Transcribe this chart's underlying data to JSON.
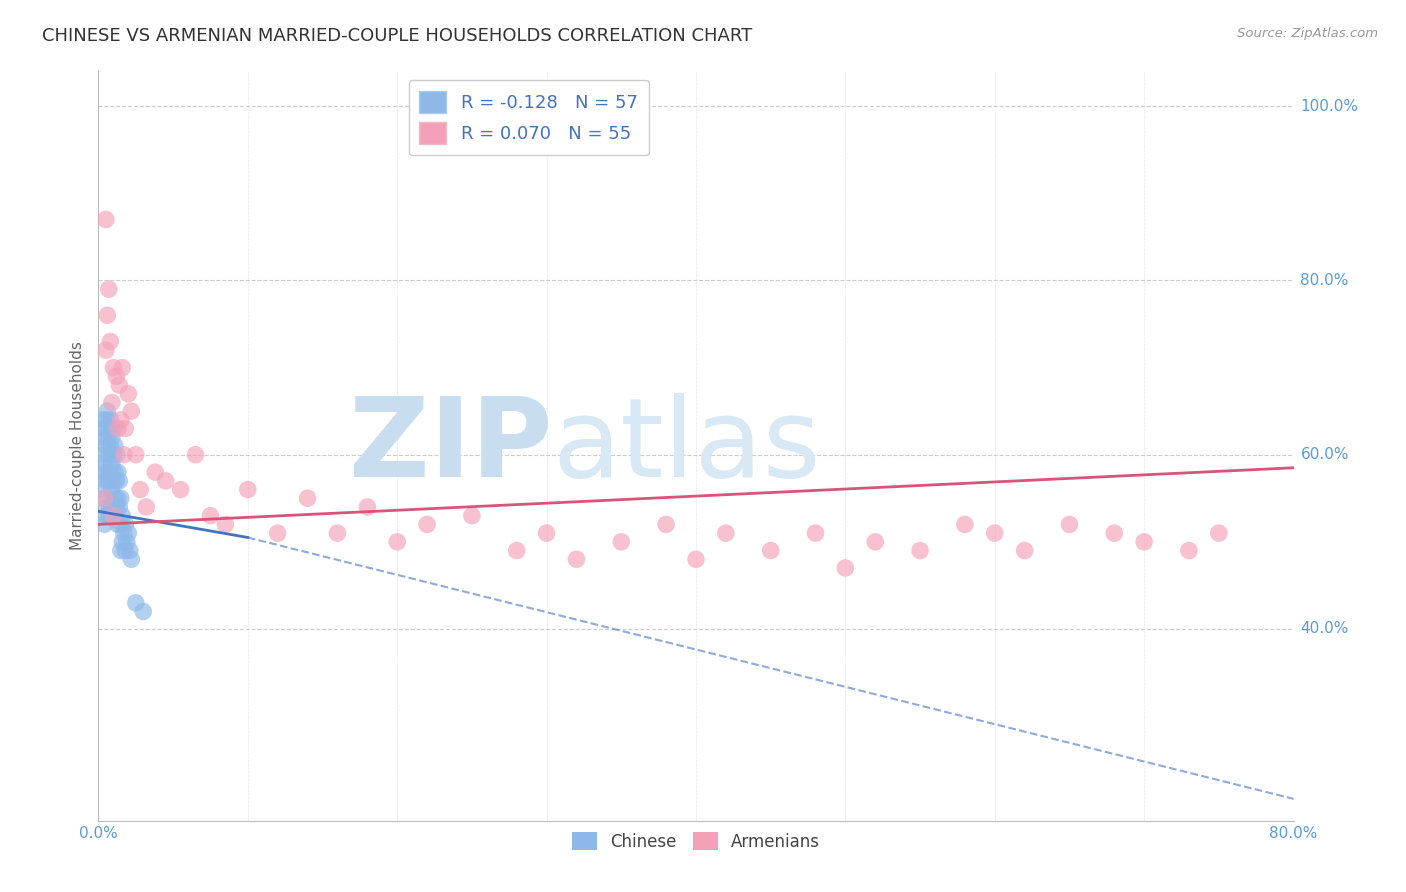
{
  "title": "CHINESE VS ARMENIAN MARRIED-COUPLE HOUSEHOLDS CORRELATION CHART",
  "source": "Source: ZipAtlas.com",
  "ylabel": "Married-couple Households",
  "xlim": [
    0.0,
    0.8
  ],
  "ylim": [
    0.18,
    1.04
  ],
  "xtick_positions": [
    0.0,
    0.1,
    0.2,
    0.3,
    0.4,
    0.5,
    0.6,
    0.7,
    0.8
  ],
  "xticklabels_show": [
    "0.0%",
    "",
    "",
    "",
    "",
    "",
    "",
    "",
    "80.0%"
  ],
  "ytick_positions": [
    0.4,
    0.6,
    0.8,
    1.0
  ],
  "ytick_labels": [
    "40.0%",
    "60.0%",
    "80.0%",
    "100.0%"
  ],
  "title_color": "#333333",
  "title_fontsize": 13,
  "tick_label_color": "#5b9bd5",
  "ylabel_color": "#666666",
  "source_color": "#999999",
  "grid_color": "#cccccc",
  "chinese_color": "#8db8e8",
  "armenian_color": "#f4a0b8",
  "chinese_R": -0.128,
  "chinese_N": 57,
  "armenian_R": 0.07,
  "armenian_N": 55,
  "watermark_zip_color": "#c8ddf0",
  "watermark_atlas_color": "#d8e8f4",
  "chinese_trend_solid_end": 0.12,
  "chinese_trend_color": "#4472c4",
  "armenian_trend_color": "#d9547a",
  "chinese_scatter_x": [
    0.002,
    0.002,
    0.003,
    0.003,
    0.003,
    0.004,
    0.004,
    0.004,
    0.004,
    0.005,
    0.005,
    0.005,
    0.005,
    0.006,
    0.006,
    0.006,
    0.006,
    0.007,
    0.007,
    0.007,
    0.007,
    0.008,
    0.008,
    0.008,
    0.008,
    0.009,
    0.009,
    0.009,
    0.01,
    0.01,
    0.01,
    0.01,
    0.011,
    0.011,
    0.011,
    0.012,
    0.012,
    0.012,
    0.013,
    0.013,
    0.013,
    0.014,
    0.014,
    0.015,
    0.015,
    0.015,
    0.016,
    0.016,
    0.017,
    0.018,
    0.018,
    0.019,
    0.02,
    0.021,
    0.022,
    0.025,
    0.03
  ],
  "chinese_scatter_y": [
    0.62,
    0.58,
    0.64,
    0.6,
    0.56,
    0.63,
    0.59,
    0.55,
    0.52,
    0.64,
    0.61,
    0.57,
    0.53,
    0.65,
    0.62,
    0.58,
    0.54,
    0.63,
    0.6,
    0.57,
    0.53,
    0.64,
    0.61,
    0.58,
    0.54,
    0.62,
    0.59,
    0.56,
    0.63,
    0.6,
    0.57,
    0.53,
    0.61,
    0.58,
    0.55,
    0.6,
    0.57,
    0.54,
    0.58,
    0.55,
    0.52,
    0.57,
    0.54,
    0.55,
    0.52,
    0.49,
    0.53,
    0.5,
    0.51,
    0.52,
    0.49,
    0.5,
    0.51,
    0.49,
    0.48,
    0.43,
    0.42
  ],
  "armenian_scatter_x": [
    0.004,
    0.005,
    0.005,
    0.006,
    0.007,
    0.008,
    0.009,
    0.01,
    0.01,
    0.012,
    0.013,
    0.014,
    0.015,
    0.016,
    0.017,
    0.018,
    0.02,
    0.022,
    0.025,
    0.028,
    0.032,
    0.038,
    0.045,
    0.055,
    0.065,
    0.075,
    0.085,
    0.1,
    0.12,
    0.14,
    0.16,
    0.18,
    0.2,
    0.22,
    0.25,
    0.28,
    0.3,
    0.32,
    0.35,
    0.38,
    0.4,
    0.42,
    0.45,
    0.48,
    0.5,
    0.52,
    0.55,
    0.58,
    0.6,
    0.62,
    0.65,
    0.68,
    0.7,
    0.73,
    0.75
  ],
  "armenian_scatter_y": [
    0.55,
    0.87,
    0.72,
    0.76,
    0.79,
    0.73,
    0.66,
    0.53,
    0.7,
    0.69,
    0.63,
    0.68,
    0.64,
    0.7,
    0.6,
    0.63,
    0.67,
    0.65,
    0.6,
    0.56,
    0.54,
    0.58,
    0.57,
    0.56,
    0.6,
    0.53,
    0.52,
    0.56,
    0.51,
    0.55,
    0.51,
    0.54,
    0.5,
    0.52,
    0.53,
    0.49,
    0.51,
    0.48,
    0.5,
    0.52,
    0.48,
    0.51,
    0.49,
    0.51,
    0.47,
    0.5,
    0.49,
    0.52,
    0.51,
    0.49,
    0.52,
    0.51,
    0.5,
    0.49,
    0.51
  ],
  "chinese_trend_x0": 0.0,
  "chinese_trend_y0": 0.535,
  "chinese_trend_x1_solid": 0.1,
  "chinese_trend_y1_solid": 0.505,
  "chinese_trend_x1_dash": 0.8,
  "chinese_trend_y1_dash": 0.205,
  "armenian_trend_x0": 0.0,
  "armenian_trend_y0": 0.52,
  "armenian_trend_x1": 0.8,
  "armenian_trend_y1": 0.585
}
